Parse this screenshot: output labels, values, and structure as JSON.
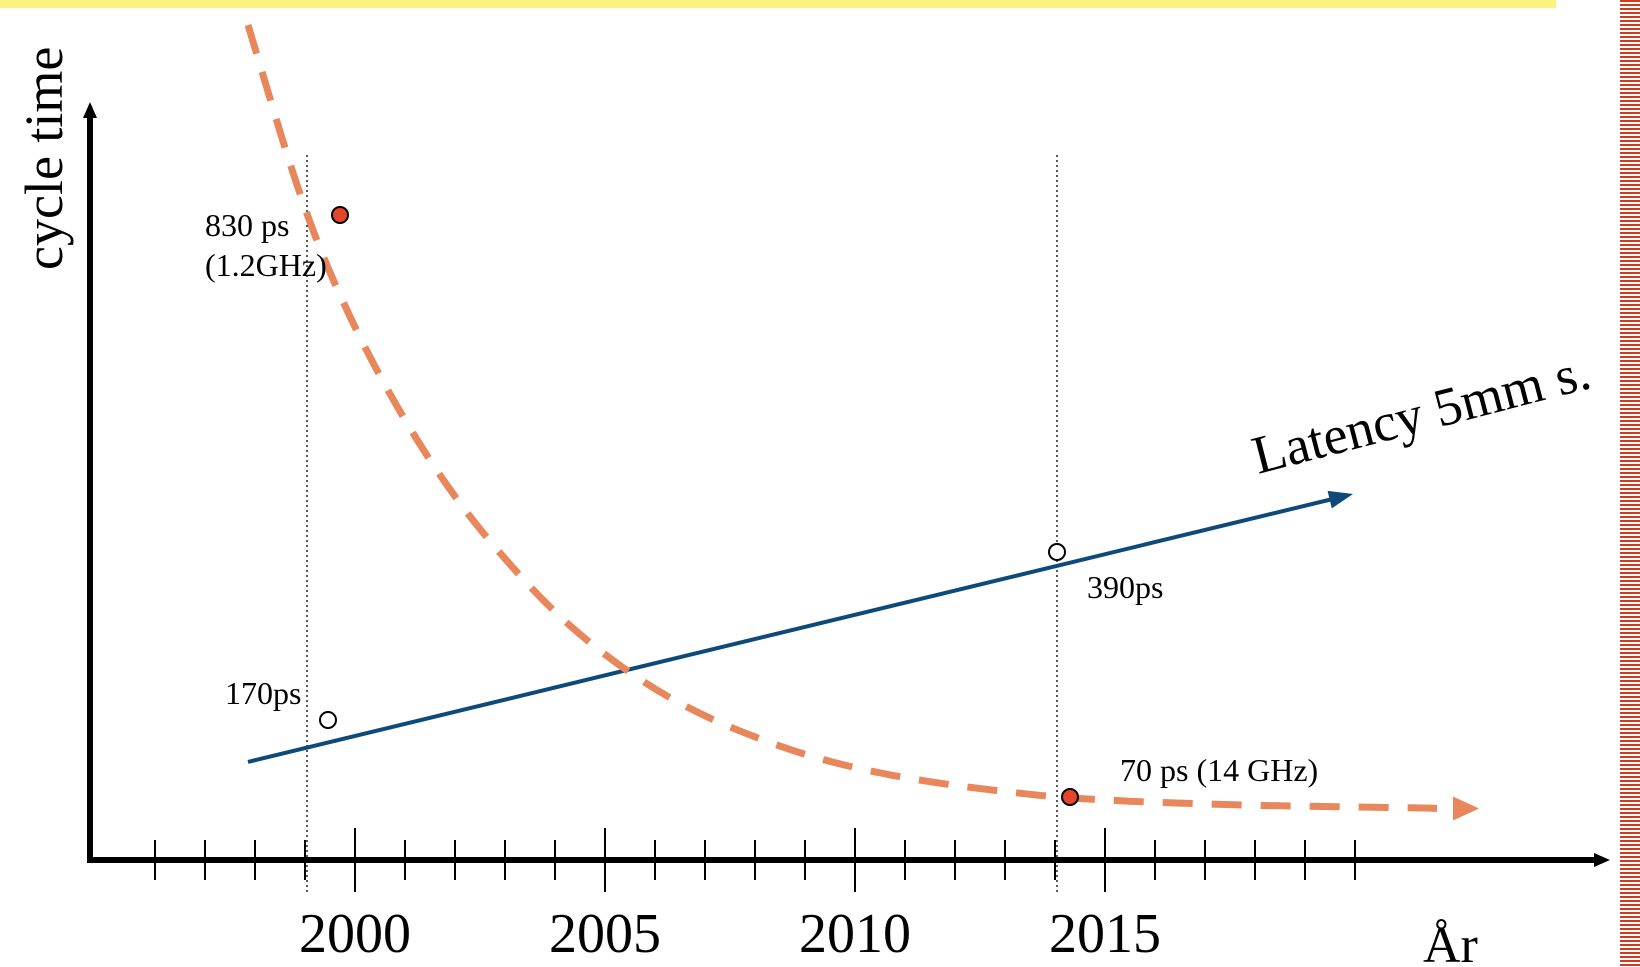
{
  "chart_data": {
    "type": "line",
    "ylabel": "cycle time",
    "xlabel": "År",
    "xlim": [
      1995,
      2025
    ],
    "x_ticks": [
      1996,
      1997,
      1998,
      1999,
      2000,
      2001,
      2002,
      2003,
      2004,
      2005,
      2006,
      2007,
      2008,
      2009,
      2010,
      2011,
      2012,
      2013,
      2014,
      2015,
      2016,
      2017,
      2018,
      2019,
      2020
    ],
    "x_tick_labels": [
      {
        "value": 2000,
        "label": "2000"
      },
      {
        "value": 2005,
        "label": "2005"
      },
      {
        "value": 2010,
        "label": "2010"
      },
      {
        "value": 2015,
        "label": "2015"
      }
    ],
    "reference_years": [
      1999,
      2014
    ],
    "series": [
      {
        "name": "Latency 5mm s.",
        "color": "#0d4a7a",
        "style": "solid-arrow",
        "x": [
          1997,
          2020
        ],
        "y": [
          140,
          480
        ],
        "points": [
          {
            "x": 1999,
            "y": 170,
            "label": "170ps"
          },
          {
            "x": 2014,
            "y": 390,
            "label": "390ps"
          }
        ]
      },
      {
        "name": "",
        "color": "#e8875c",
        "style": "dashed-arrow",
        "x": [
          1998,
          1999,
          2000,
          2001,
          2002,
          2003,
          2004,
          2005,
          2006,
          2007,
          2008,
          2009,
          2010,
          2011,
          2012,
          2013,
          2014,
          2015,
          2016,
          2017,
          2018,
          2019,
          2020,
          2021,
          2022
        ],
        "y": [
          1000,
          830,
          680,
          560,
          460,
          380,
          310,
          255,
          210,
          175,
          148,
          125,
          108,
          95,
          85,
          77,
          70,
          66,
          63,
          61,
          59,
          58,
          57,
          56,
          55
        ],
        "points": [
          {
            "x": 1999,
            "y": 830,
            "label": "830 ps",
            "sublabel": "(1.2GHz)"
          },
          {
            "x": 2014,
            "y": 70,
            "label": "70 ps (14 GHz)"
          }
        ]
      }
    ]
  }
}
